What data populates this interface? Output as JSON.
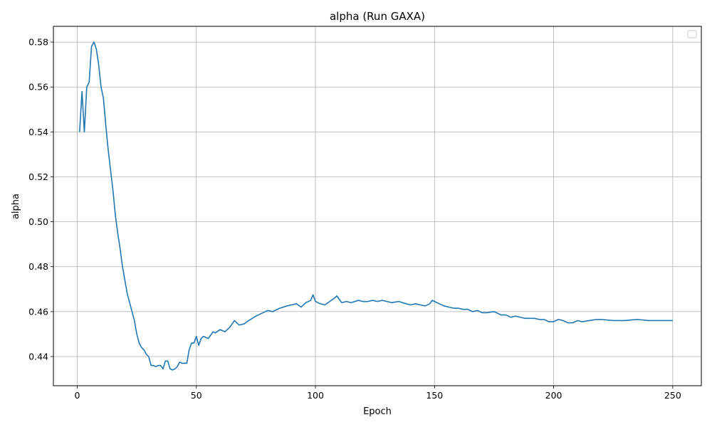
{
  "chart_data": {
    "type": "line",
    "title": "alpha (Run GAXA)",
    "xlabel": "Epoch",
    "ylabel": "alpha",
    "xlim": [
      -10,
      262
    ],
    "ylim": [
      0.427,
      0.587
    ],
    "xticks": [
      0,
      50,
      100,
      150,
      200,
      250
    ],
    "yticks": [
      0.44,
      0.46,
      0.48,
      0.5,
      0.52,
      0.54,
      0.56,
      0.58
    ],
    "ytick_labels": [
      "0.44",
      "0.46",
      "0.48",
      "0.50",
      "0.52",
      "0.54",
      "0.56",
      "0.58"
    ],
    "grid": true,
    "legend": "top-right",
    "color": "#1f77b4",
    "series": [
      {
        "x": [
          1,
          2,
          3,
          4,
          5,
          6,
          7,
          8,
          9,
          10,
          11,
          12,
          13,
          14,
          15,
          16,
          17,
          18,
          19,
          20,
          21,
          22,
          23,
          24,
          25,
          26,
          27,
          28,
          29,
          30,
          31,
          32,
          33,
          34,
          35,
          36,
          37,
          38,
          39,
          40,
          41,
          42,
          43,
          44,
          45,
          46,
          47,
          48,
          49,
          50,
          51,
          52,
          53,
          55,
          57,
          58,
          60,
          62,
          64,
          66,
          68,
          70,
          72,
          75,
          78,
          80,
          82,
          85,
          88,
          90,
          92,
          94,
          96,
          98,
          99,
          100,
          102,
          104,
          106,
          108,
          109,
          111,
          113,
          115,
          118,
          120,
          122,
          124,
          126,
          128,
          130,
          132,
          135,
          138,
          140,
          142,
          144,
          146,
          148,
          149,
          150,
          152,
          154,
          156,
          158,
          160,
          162,
          164,
          166,
          168,
          170,
          172,
          175,
          178,
          180,
          182,
          184,
          186,
          188,
          190,
          192,
          194,
          196,
          198,
          200,
          202,
          204,
          206,
          208,
          210,
          212,
          215,
          218,
          220,
          225,
          230,
          235,
          240,
          245,
          250
        ],
        "y": [
          0.54,
          0.558,
          0.54,
          0.56,
          0.562,
          0.578,
          0.58,
          0.577,
          0.57,
          0.56,
          0.555,
          0.543,
          0.532,
          0.523,
          0.514,
          0.503,
          0.495,
          0.488,
          0.48,
          0.474,
          0.468,
          0.464,
          0.46,
          0.456,
          0.45,
          0.446,
          0.444,
          0.443,
          0.441,
          0.44,
          0.436,
          0.436,
          0.4355,
          0.436,
          0.436,
          0.4345,
          0.438,
          0.438,
          0.4345,
          0.434,
          0.4345,
          0.4355,
          0.4375,
          0.437,
          0.437,
          0.437,
          0.443,
          0.446,
          0.446,
          0.449,
          0.445,
          0.448,
          0.449,
          0.448,
          0.451,
          0.4505,
          0.452,
          0.451,
          0.453,
          0.456,
          0.454,
          0.4545,
          0.456,
          0.458,
          0.4595,
          0.4605,
          0.46,
          0.4615,
          0.4625,
          0.463,
          0.4635,
          0.462,
          0.464,
          0.465,
          0.4675,
          0.4645,
          0.4635,
          0.463,
          0.4645,
          0.466,
          0.467,
          0.464,
          0.4645,
          0.464,
          0.465,
          0.4645,
          0.4645,
          0.465,
          0.4645,
          0.465,
          0.4645,
          0.464,
          0.4645,
          0.4635,
          0.463,
          0.4635,
          0.463,
          0.4625,
          0.4635,
          0.465,
          0.4645,
          0.4635,
          0.4625,
          0.462,
          0.4615,
          0.4615,
          0.461,
          0.461,
          0.46,
          0.4605,
          0.4595,
          0.4595,
          0.46,
          0.4585,
          0.4585,
          0.4575,
          0.458,
          0.4575,
          0.457,
          0.457,
          0.457,
          0.4565,
          0.4565,
          0.4555,
          0.4555,
          0.4565,
          0.456,
          0.455,
          0.455,
          0.456,
          0.4555,
          0.456,
          0.4565,
          0.4565,
          0.456,
          0.456,
          0.4565,
          0.456,
          0.456,
          0.456
        ]
      }
    ]
  }
}
